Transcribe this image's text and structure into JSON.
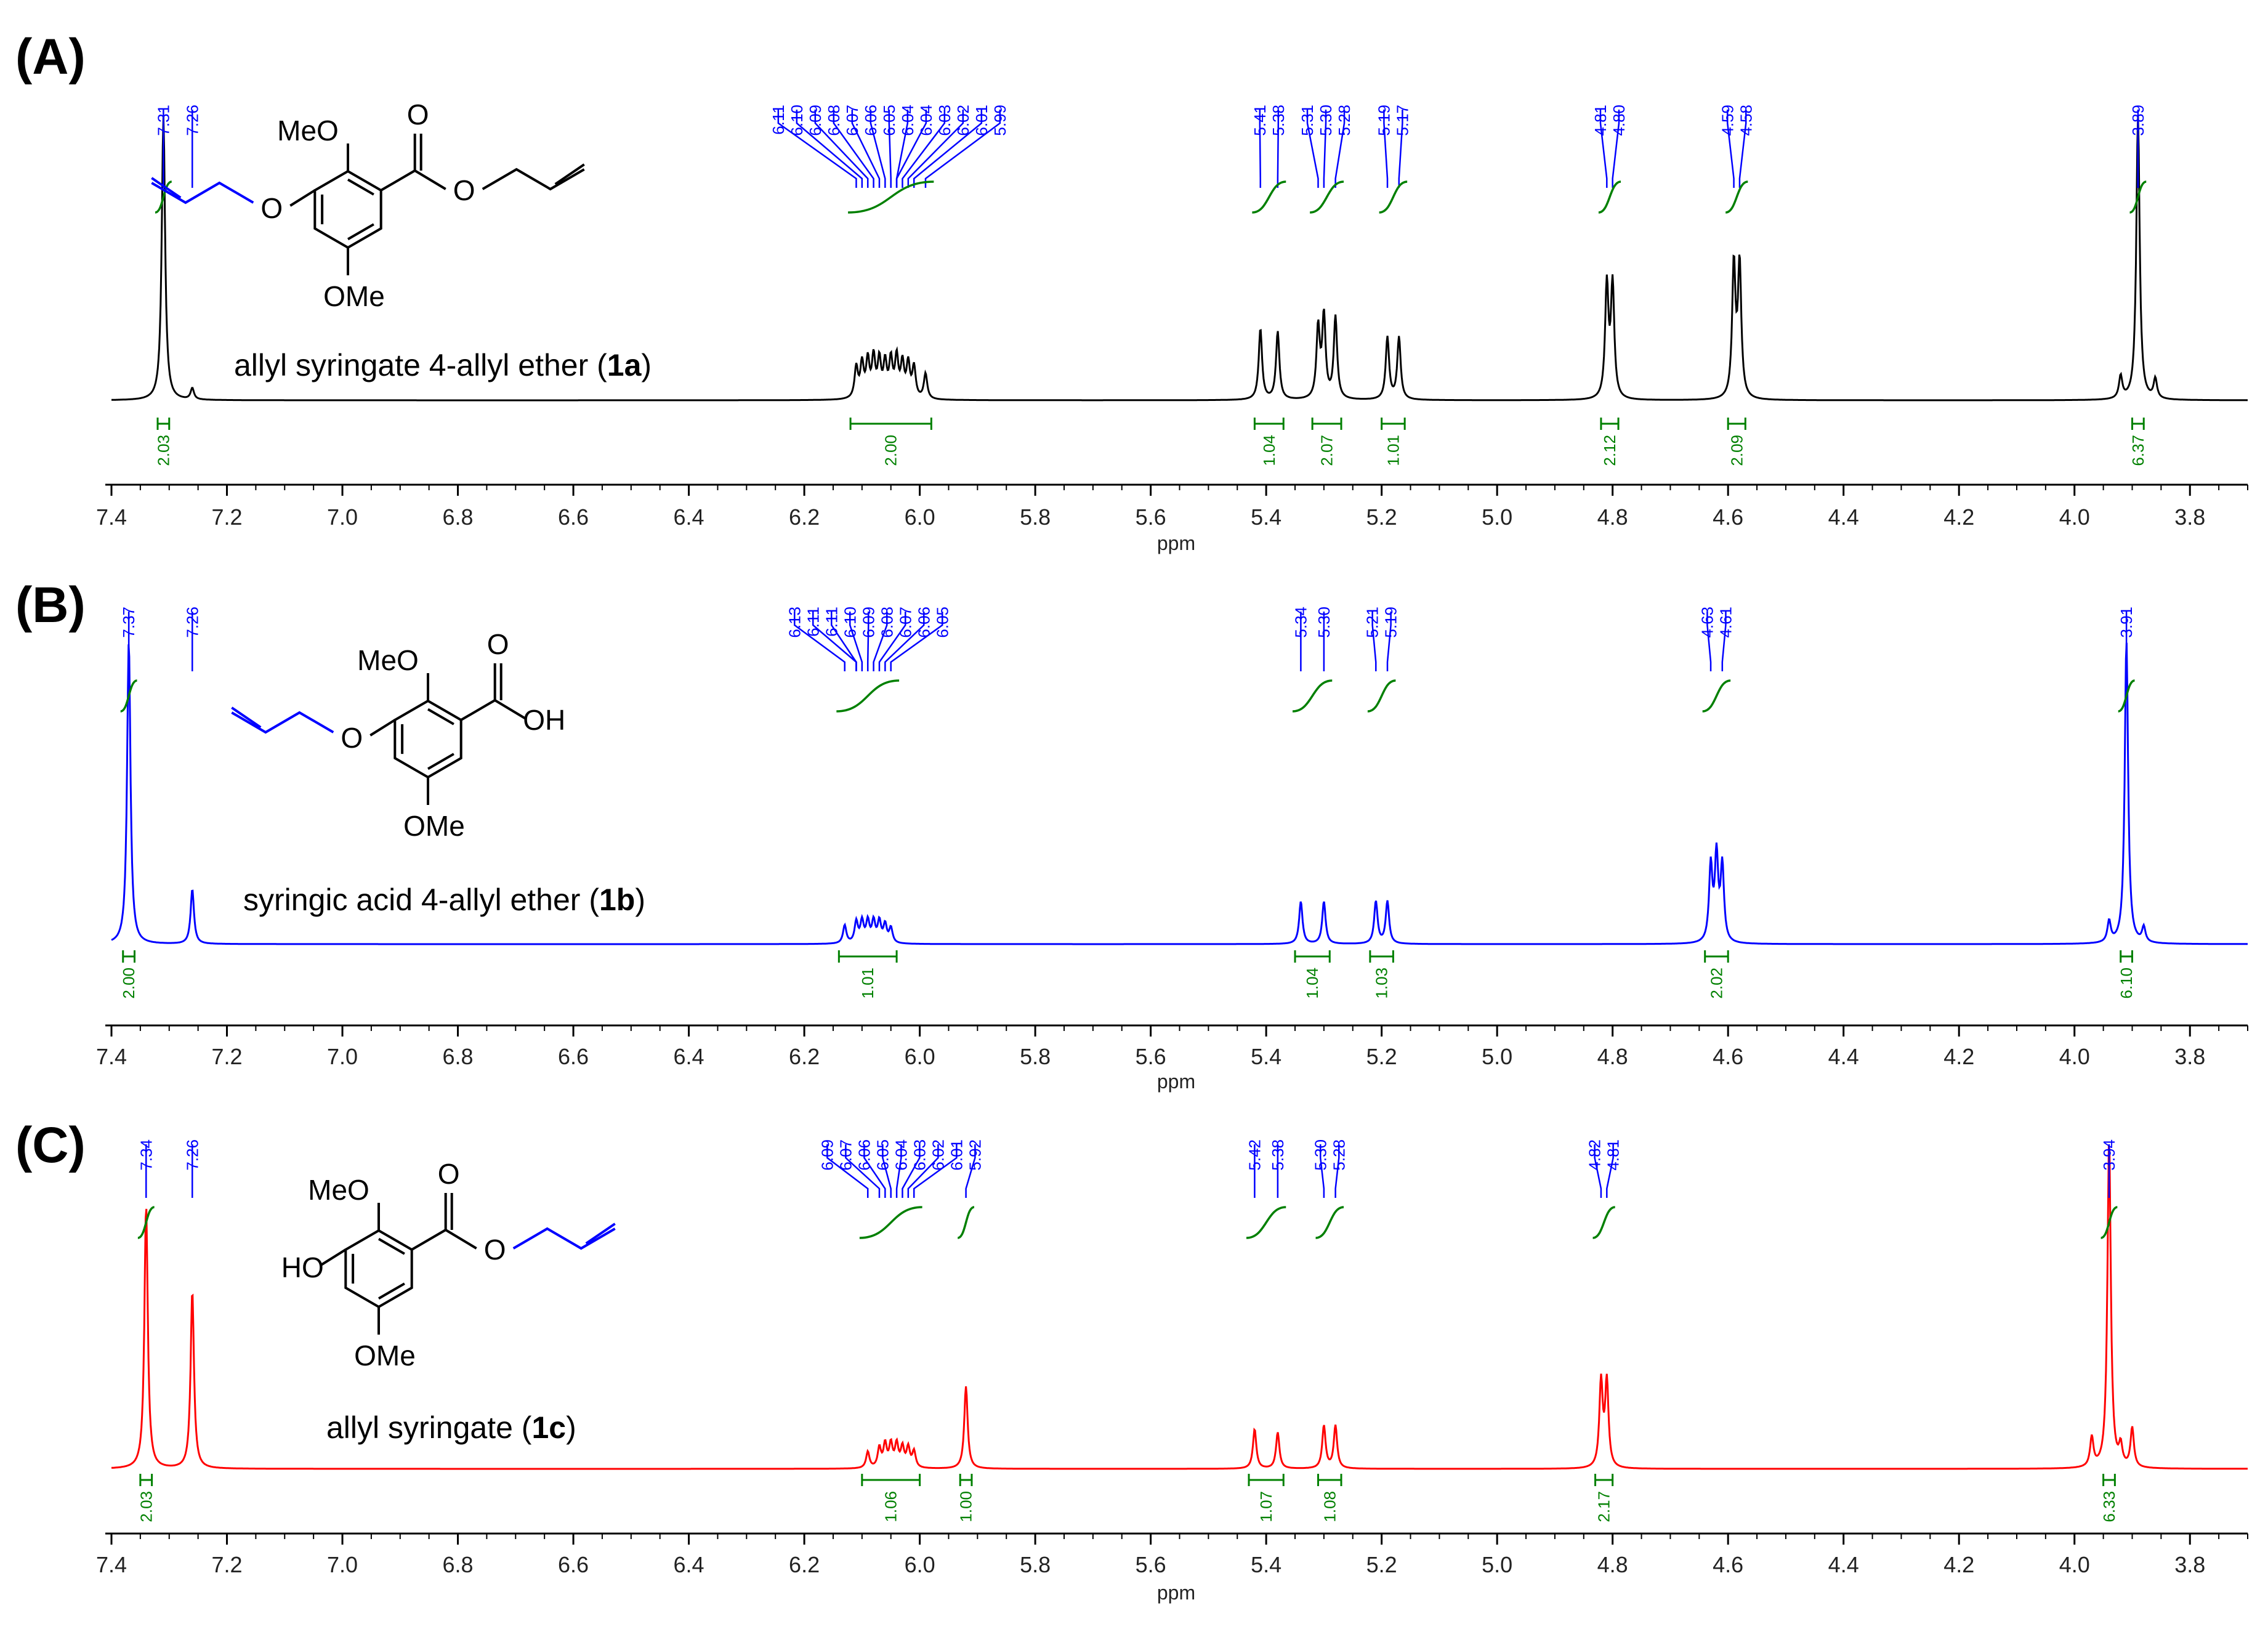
{
  "colors": {
    "spectrum_a": "#000000",
    "spectrum_b": "#0000ff",
    "spectrum_c": "#ff0000",
    "peak_labels": "#0000ff",
    "integrals": "#008000",
    "axis": "#000000",
    "molecule_black": "#000000",
    "molecule_blue": "#0000ff"
  },
  "chart_data": [
    {
      "panel_label": "(A)",
      "type": "line",
      "xlabel": "ppm",
      "xlim": [
        7.4,
        3.7
      ],
      "x_ticks": [
        "7.4",
        "7.2",
        "7.0",
        "6.8",
        "6.6",
        "6.4",
        "6.2",
        "6.0",
        "5.8",
        "5.6",
        "5.4",
        "5.2",
        "5.0",
        "4.8",
        "4.6",
        "4.4",
        "4.2",
        "4.0",
        "3.8"
      ],
      "compound_label": {
        "prefix": "allyl syringate 4-allyl ether (",
        "bold": "1a",
        "suffix": ")"
      },
      "molecule": {
        "atom_labels": [
          "MeO",
          "O",
          "O",
          "O",
          "OMe"
        ],
        "allyl_groups": 2
      },
      "peak_labels": [
        "7.31",
        "7.26",
        "6.11",
        "6.10",
        "6.09",
        "6.08",
        "6.07",
        "6.06",
        "6.05",
        "6.04",
        "6.04",
        "6.03",
        "6.02",
        "6.01",
        "5.99",
        "5.41",
        "5.38",
        "5.31",
        "5.30",
        "5.28",
        "5.19",
        "5.17",
        "4.81",
        "4.80",
        "4.59",
        "4.58",
        "3.89"
      ],
      "peaks": [
        {
          "ppm": 7.31,
          "height": 1.0,
          "label": "7.31"
        },
        {
          "ppm": 7.26,
          "height": 0.04,
          "label": "7.26"
        },
        {
          "ppm": 6.11,
          "height": 0.11
        },
        {
          "ppm": 6.1,
          "height": 0.12
        },
        {
          "ppm": 6.09,
          "height": 0.13
        },
        {
          "ppm": 6.08,
          "height": 0.14
        },
        {
          "ppm": 6.07,
          "height": 0.13
        },
        {
          "ppm": 6.06,
          "height": 0.12
        },
        {
          "ppm": 6.05,
          "height": 0.13
        },
        {
          "ppm": 6.04,
          "height": 0.14
        },
        {
          "ppm": 6.03,
          "height": 0.12
        },
        {
          "ppm": 6.02,
          "height": 0.12
        },
        {
          "ppm": 6.01,
          "height": 0.11
        },
        {
          "ppm": 5.99,
          "height": 0.09
        },
        {
          "ppm": 5.41,
          "height": 0.25
        },
        {
          "ppm": 5.38,
          "height": 0.24
        },
        {
          "ppm": 5.31,
          "height": 0.25
        },
        {
          "ppm": 5.3,
          "height": 0.29
        },
        {
          "ppm": 5.28,
          "height": 0.29
        },
        {
          "ppm": 5.19,
          "height": 0.22
        },
        {
          "ppm": 5.17,
          "height": 0.22
        },
        {
          "ppm": 4.81,
          "height": 0.4
        },
        {
          "ppm": 4.8,
          "height": 0.4
        },
        {
          "ppm": 4.59,
          "height": 0.47
        },
        {
          "ppm": 4.58,
          "height": 0.47
        },
        {
          "ppm": 3.92,
          "height": 0.08
        },
        {
          "ppm": 3.89,
          "height": 1.0
        },
        {
          "ppm": 3.86,
          "height": 0.07
        }
      ],
      "integrals": [
        {
          "from": 7.32,
          "to": 7.3,
          "value": "2.03"
        },
        {
          "from": 6.12,
          "to": 5.98,
          "value": "2.00"
        },
        {
          "from": 5.42,
          "to": 5.37,
          "value": "1.04"
        },
        {
          "from": 5.32,
          "to": 5.27,
          "value": "2.07"
        },
        {
          "from": 5.2,
          "to": 5.16,
          "value": "1.01"
        },
        {
          "from": 4.82,
          "to": 4.79,
          "value": "2.12"
        },
        {
          "from": 4.6,
          "to": 4.57,
          "value": "2.09"
        },
        {
          "from": 3.9,
          "to": 3.88,
          "value": "6.37"
        }
      ]
    },
    {
      "panel_label": "(B)",
      "type": "line",
      "xlabel": "ppm",
      "xlim": [
        7.4,
        3.7
      ],
      "x_ticks": [
        "7.4",
        "7.2",
        "7.0",
        "6.8",
        "6.6",
        "6.4",
        "6.2",
        "6.0",
        "5.8",
        "5.6",
        "5.4",
        "5.2",
        "5.0",
        "4.8",
        "4.6",
        "4.4",
        "4.2",
        "4.0",
        "3.8"
      ],
      "compound_label": {
        "prefix": "syringic acid 4-allyl ether (",
        "bold": "1b",
        "suffix": ")"
      },
      "molecule": {
        "atom_labels": [
          "MeO",
          "O",
          "OH",
          "O",
          "OMe"
        ],
        "allyl_groups": 1
      },
      "peak_labels": [
        "7.37",
        "7.26",
        "6.13",
        "6.11",
        "6.11",
        "6.10",
        "6.09",
        "6.08",
        "6.07",
        "6.06",
        "6.05",
        "5.34",
        "5.30",
        "5.21",
        "5.19",
        "4.63",
        "4.61",
        "3.91"
      ],
      "peaks": [
        {
          "ppm": 7.37,
          "height": 1.0
        },
        {
          "ppm": 7.26,
          "height": 0.18
        },
        {
          "ppm": 6.13,
          "height": 0.06
        },
        {
          "ppm": 6.11,
          "height": 0.07
        },
        {
          "ppm": 6.1,
          "height": 0.07
        },
        {
          "ppm": 6.09,
          "height": 0.07
        },
        {
          "ppm": 6.08,
          "height": 0.07
        },
        {
          "ppm": 6.07,
          "height": 0.07
        },
        {
          "ppm": 6.06,
          "height": 0.06
        },
        {
          "ppm": 6.05,
          "height": 0.05
        },
        {
          "ppm": 5.34,
          "height": 0.14
        },
        {
          "ppm": 5.3,
          "height": 0.14
        },
        {
          "ppm": 5.21,
          "height": 0.14
        },
        {
          "ppm": 5.19,
          "height": 0.14
        },
        {
          "ppm": 4.63,
          "height": 0.25
        },
        {
          "ppm": 4.62,
          "height": 0.28
        },
        {
          "ppm": 4.61,
          "height": 0.25
        },
        {
          "ppm": 3.94,
          "height": 0.07
        },
        {
          "ppm": 3.91,
          "height": 1.0
        },
        {
          "ppm": 3.88,
          "height": 0.05
        }
      ],
      "integrals": [
        {
          "from": 7.38,
          "to": 7.36,
          "value": "2.00"
        },
        {
          "from": 6.14,
          "to": 6.04,
          "value": "1.01"
        },
        {
          "from": 5.35,
          "to": 5.29,
          "value": "1.04"
        },
        {
          "from": 5.22,
          "to": 5.18,
          "value": "1.03"
        },
        {
          "from": 4.64,
          "to": 4.6,
          "value": "2.02"
        },
        {
          "from": 3.92,
          "to": 3.9,
          "value": "6.10"
        }
      ]
    },
    {
      "panel_label": "(C)",
      "type": "line",
      "xlabel": "ppm",
      "xlim": [
        7.4,
        3.7
      ],
      "x_ticks": [
        "7.4",
        "7.2",
        "7.0",
        "6.8",
        "6.6",
        "6.4",
        "6.2",
        "6.0",
        "5.8",
        "5.6",
        "5.4",
        "5.2",
        "5.0",
        "4.8",
        "4.6",
        "4.4",
        "4.2",
        "4.0",
        "3.8"
      ],
      "compound_label": {
        "prefix": "allyl syringate (",
        "bold": "1c",
        "suffix": ")"
      },
      "molecule": {
        "atom_labels": [
          "MeO",
          "O",
          "O",
          "HO",
          "OMe"
        ],
        "allyl_groups": 1
      },
      "peak_labels": [
        "7.34",
        "7.26",
        "6.09",
        "6.07",
        "6.06",
        "6.05",
        "6.04",
        "6.03",
        "6.02",
        "6.01",
        "5.92",
        "5.42",
        "5.38",
        "5.30",
        "5.28",
        "4.82",
        "4.81",
        "3.94"
      ],
      "peaks": [
        {
          "ppm": 7.34,
          "height": 0.8
        },
        {
          "ppm": 7.26,
          "height": 0.54
        },
        {
          "ppm": 6.09,
          "height": 0.05
        },
        {
          "ppm": 6.07,
          "height": 0.06
        },
        {
          "ppm": 6.06,
          "height": 0.07
        },
        {
          "ppm": 6.05,
          "height": 0.07
        },
        {
          "ppm": 6.04,
          "height": 0.07
        },
        {
          "ppm": 6.03,
          "height": 0.06
        },
        {
          "ppm": 6.02,
          "height": 0.06
        },
        {
          "ppm": 6.01,
          "height": 0.05
        },
        {
          "ppm": 5.92,
          "height": 0.25
        },
        {
          "ppm": 5.42,
          "height": 0.12
        },
        {
          "ppm": 5.38,
          "height": 0.11
        },
        {
          "ppm": 5.3,
          "height": 0.13
        },
        {
          "ppm": 5.28,
          "height": 0.13
        },
        {
          "ppm": 4.82,
          "height": 0.26
        },
        {
          "ppm": 4.81,
          "height": 0.26
        },
        {
          "ppm": 3.97,
          "height": 0.09
        },
        {
          "ppm": 3.94,
          "height": 1.0
        },
        {
          "ppm": 3.92,
          "height": 0.06
        },
        {
          "ppm": 3.9,
          "height": 0.12
        }
      ],
      "integrals": [
        {
          "from": 7.35,
          "to": 7.33,
          "value": "2.03"
        },
        {
          "from": 6.1,
          "to": 6.0,
          "value": "1.06"
        },
        {
          "from": 5.93,
          "to": 5.91,
          "value": "1.00"
        },
        {
          "from": 5.43,
          "to": 5.37,
          "value": "1.07"
        },
        {
          "from": 5.31,
          "to": 5.27,
          "value": "1.08"
        },
        {
          "from": 4.83,
          "to": 4.8,
          "value": "2.17"
        },
        {
          "from": 3.95,
          "to": 3.93,
          "value": "6.33"
        }
      ]
    }
  ]
}
